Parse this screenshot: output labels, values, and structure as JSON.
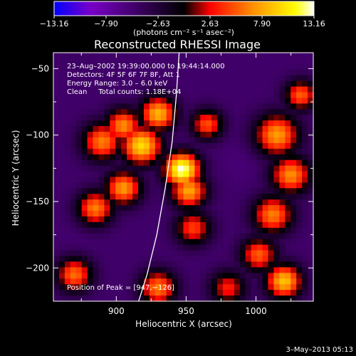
{
  "chart_data": {
    "type": "heatmap",
    "title": "Reconstructed RHESSI Image",
    "xlabel": "Heliocentric X (arcsec)",
    "ylabel": "Heliocentric Y (arcsec)",
    "xlim": [
      855,
      1041
    ],
    "ylim": [
      -225,
      -38
    ],
    "x_ticks": [
      900,
      950,
      1000
    ],
    "y_ticks": [
      -50,
      -100,
      -150,
      -200
    ],
    "colorbar": {
      "min": -13.16,
      "max": 13.16,
      "tick_values": [
        -13.16,
        -7.9,
        -2.63,
        2.63,
        7.9,
        13.16
      ],
      "tick_labels": [
        "−13.16",
        "−7.90",
        "−2.63",
        "2.63",
        "7.90",
        "13.16"
      ],
      "units_label": "(photons cm⁻² s⁻¹ asec⁻²)",
      "colors": [
        "#0000ff",
        "#7a00c8",
        "#000000",
        "#ff0000",
        "#ff8c00",
        "#ffff00",
        "#ffffff"
      ]
    },
    "annotations": [
      "23–Aug–2002 19:39:00.000 to 19:44:14.000",
      "Detectors: 4F 5F 6F 7F 8F, Att 1",
      "Energy Range: 3.0 – 6.0 keV",
      "Clean     Total counts: 1.18E+04"
    ],
    "peak_label": "Position of Peak = [947,−126]",
    "peak": [
      947,
      -126
    ],
    "limb_curve": [
      [
        945,
        -38
      ],
      [
        943,
        -70
      ],
      [
        940,
        -105
      ],
      [
        935,
        -140
      ],
      [
        929,
        -175
      ],
      [
        922,
        -205
      ],
      [
        916,
        -225
      ]
    ],
    "sources": [
      {
        "x": 918,
        "y": -108,
        "value": 10.0,
        "sigma": 10
      },
      {
        "x": 947,
        "y": -126,
        "value": 13.16,
        "sigma": 9
      },
      {
        "x": 930,
        "y": -84,
        "value": 8.5,
        "sigma": 9
      },
      {
        "x": 905,
        "y": -93,
        "value": 7.0,
        "sigma": 9
      },
      {
        "x": 890,
        "y": -105,
        "value": 6.5,
        "sigma": 10
      },
      {
        "x": 885,
        "y": -155,
        "value": 6.5,
        "sigma": 9
      },
      {
        "x": 905,
        "y": -140,
        "value": 7.5,
        "sigma": 9
      },
      {
        "x": 952,
        "y": -142,
        "value": 8.0,
        "sigma": 9
      },
      {
        "x": 965,
        "y": -92,
        "value": 5.0,
        "sigma": 8
      },
      {
        "x": 955,
        "y": -170,
        "value": 4.5,
        "sigma": 9
      },
      {
        "x": 1015,
        "y": -100,
        "value": 7.5,
        "sigma": 11
      },
      {
        "x": 1025,
        "y": -130,
        "value": 7.0,
        "sigma": 10
      },
      {
        "x": 1012,
        "y": -160,
        "value": 6.5,
        "sigma": 10
      },
      {
        "x": 1032,
        "y": -70,
        "value": 5.5,
        "sigma": 8
      },
      {
        "x": 1020,
        "y": -210,
        "value": 9.0,
        "sigma": 9
      },
      {
        "x": 1002,
        "y": -190,
        "value": 5.5,
        "sigma": 9
      },
      {
        "x": 870,
        "y": -205,
        "value": 6.0,
        "sigma": 9
      },
      {
        "x": 930,
        "y": -215,
        "value": 6.5,
        "sigma": 9
      },
      {
        "x": 980,
        "y": -215,
        "value": 3.5,
        "sigma": 9
      },
      {
        "x": 990,
        "y": -120,
        "value": -6.0,
        "sigma": 10
      },
      {
        "x": 870,
        "y": -185,
        "value": -5.5,
        "sigma": 10
      },
      {
        "x": 1040,
        "y": -40,
        "value": -5.0,
        "sigma": 10
      },
      {
        "x": 870,
        "y": -40,
        "value": -4.5,
        "sigma": 10
      }
    ],
    "background_value": -5.0,
    "grid": false
  },
  "footer": {
    "date_stamp": "3–May–2013 05:13"
  }
}
